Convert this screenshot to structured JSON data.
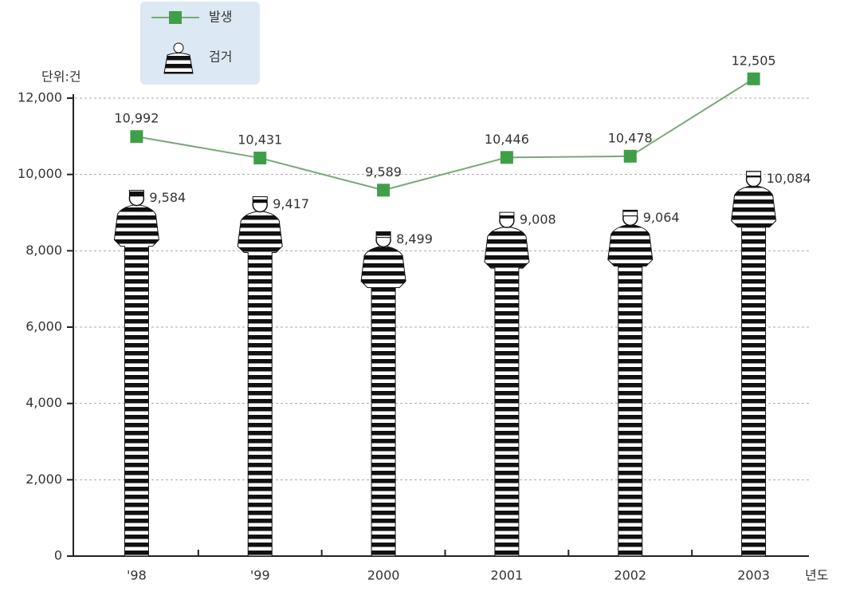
{
  "chart_data": {
    "type": "bar_line",
    "unit_label": "단위:건",
    "x_label": "년도",
    "categories": [
      "'98",
      "'99",
      "2000",
      "2001",
      "2002",
      "2003"
    ],
    "series": [
      {
        "name": "발생",
        "type": "line",
        "color": "#3f9f49",
        "values": [
          10992,
          10431,
          9589,
          10446,
          10478,
          12505
        ],
        "value_labels": [
          "10,992",
          "10,431",
          "9,589",
          "10,446",
          "10,478",
          "12,505"
        ]
      },
      {
        "name": "검거",
        "type": "bar",
        "color": "#111111",
        "values": [
          9584,
          9417,
          8499,
          9008,
          9064,
          10084
        ],
        "value_labels": [
          "9,584",
          "9,417",
          "8,499",
          "9,008",
          "9,064",
          "10,084"
        ]
      }
    ],
    "ylim": [
      0,
      12000
    ],
    "yticks": [
      0,
      {
        "value": 2000,
        "label": "2,000"
      },
      {
        "value": 4000,
        "label": "4,000"
      },
      {
        "value": 6000,
        "label": "6,000"
      },
      {
        "value": 8000,
        "label": "8,000"
      },
      {
        "value": 10000,
        "label": "10,000"
      },
      {
        "value": 12000,
        "label": "12,000"
      }
    ],
    "grid": true,
    "legend": "upper left"
  }
}
